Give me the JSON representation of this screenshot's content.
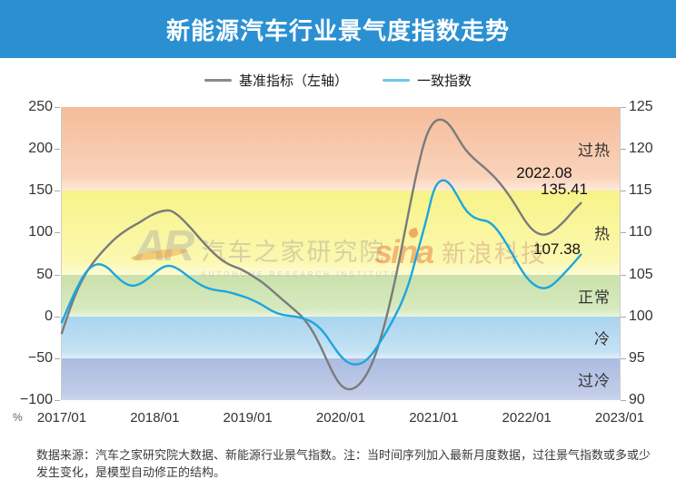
{
  "title": "新能源汽车行业景气度指数走势",
  "colors": {
    "title_bar": "#2b90d2",
    "benchmark_line": "#7b7b7b",
    "coincident_line": "#1ca6e0"
  },
  "legend": [
    {
      "label": "基准指标（左轴）",
      "swatch_color": "#8a8a8a"
    },
    {
      "label": "一致指数",
      "swatch_color": "#6fc6ee"
    }
  ],
  "axis_unit": "%",
  "annotations": {
    "date": "2022.08",
    "benchmark_value": "135.41",
    "coincident_value": "107.38"
  },
  "watermarks": {
    "autohome_logo": "AR",
    "autohome_cn": "汽车之家研究院",
    "autohome_en": "AUTOHOME RESEARCH INSTITUTE",
    "sina_logo": "sina",
    "sina_cn": "新浪科技"
  },
  "footnote": "数据来源：汽车之家研究院大数据、新能源行业景气指数。注：当时间序列加入最新月度数据，过往景气指数或多或少发生变化，是模型自动修正的结构。",
  "chart_data": {
    "type": "line",
    "title": "新能源汽车行业景气度指数走势",
    "frequency": "monthly",
    "x_start": "2017/01",
    "x_end": "2022/08",
    "x_ticks": [
      "2017/01",
      "2018/01",
      "2019/01",
      "2020/01",
      "2021/01",
      "2022/01",
      "2023/01"
    ],
    "x_total_months": 72,
    "left_axis": {
      "unit": "%",
      "range": [
        -100,
        250
      ],
      "ticks": [
        250,
        200,
        150,
        100,
        50,
        0,
        -50,
        -100
      ]
    },
    "right_axis": {
      "range": [
        90,
        125
      ],
      "ticks": [
        125,
        120,
        115,
        110,
        105,
        100,
        95,
        90
      ]
    },
    "zones": [
      {
        "label": "过热",
        "left_range": [
          150,
          250
        ],
        "right_range": [
          115,
          125
        ],
        "colors": [
          "#f5bc9a",
          "#fad3ba",
          "#fdeadc"
        ]
      },
      {
        "label": "热",
        "left_range": [
          50,
          150
        ],
        "right_range": [
          105,
          115
        ],
        "colors": [
          "#f7f388",
          "#fbf8b0",
          "#fdfbd8"
        ]
      },
      {
        "label": "正常",
        "left_range": [
          0,
          50
        ],
        "right_range": [
          100,
          105
        ],
        "colors": [
          "#c9e1aa",
          "#d7eac0",
          "#ecf5e2"
        ]
      },
      {
        "label": "冷",
        "left_range": [
          -50,
          0
        ],
        "right_range": [
          95,
          100
        ],
        "colors": [
          "#a9d4ee",
          "#c5e2f4",
          "#def0fa"
        ]
      },
      {
        "label": "过冷",
        "left_range": [
          -100,
          -50
        ],
        "right_range": [
          90,
          95
        ],
        "colors": [
          "#abbce1",
          "#c1cce8",
          "#ccd6ee"
        ]
      }
    ],
    "series": [
      {
        "name": "基准指标（左轴）",
        "axis": "left",
        "color": "#7b7b7b",
        "values": [
          -20,
          8,
          32,
          50,
          64,
          75,
          85,
          94,
          101,
          107,
          112,
          118,
          123,
          126,
          127,
          121,
          112,
          102,
          91,
          81,
          72,
          65,
          60,
          57,
          52,
          46,
          40,
          32,
          24,
          16,
          8,
          0,
          -12,
          -28,
          -48,
          -68,
          -83,
          -88,
          -85,
          -75,
          -58,
          -32,
          2,
          42,
          88,
          136,
          180,
          216,
          233,
          236,
          230,
          215,
          200,
          190,
          182,
          174,
          165,
          154,
          141,
          126,
          111,
          101,
          97,
          99,
          106,
          115,
          126,
          135.41
        ]
      },
      {
        "name": "一致指数",
        "axis": "right",
        "color": "#1ca6e0",
        "values": [
          99.3,
          101.5,
          103.5,
          105.2,
          106.1,
          106.3,
          105.8,
          104.8,
          104.0,
          103.6,
          103.8,
          104.4,
          105.2,
          105.9,
          106.1,
          105.7,
          105.0,
          104.3,
          103.7,
          103.3,
          103.1,
          103.0,
          102.8,
          102.5,
          102.2,
          101.8,
          101.3,
          100.7,
          100.3,
          100.1,
          100.0,
          99.8,
          99.5,
          98.9,
          97.9,
          96.5,
          95.2,
          94.4,
          94.2,
          94.5,
          95.4,
          96.8,
          98.3,
          100.0,
          101.9,
          104.5,
          108.0,
          111.3,
          115.3,
          116.4,
          116.0,
          114.5,
          112.8,
          111.9,
          111.5,
          111.4,
          110.6,
          109.3,
          107.7,
          106.0,
          104.6,
          103.7,
          103.3,
          103.5,
          104.3,
          105.3,
          106.3,
          107.38
        ]
      }
    ],
    "annotations": [
      {
        "text": "2022.08"
      },
      {
        "text": "135.41",
        "series": "基准指标（左轴）"
      },
      {
        "text": "107.38",
        "series": "一致指数"
      }
    ]
  }
}
